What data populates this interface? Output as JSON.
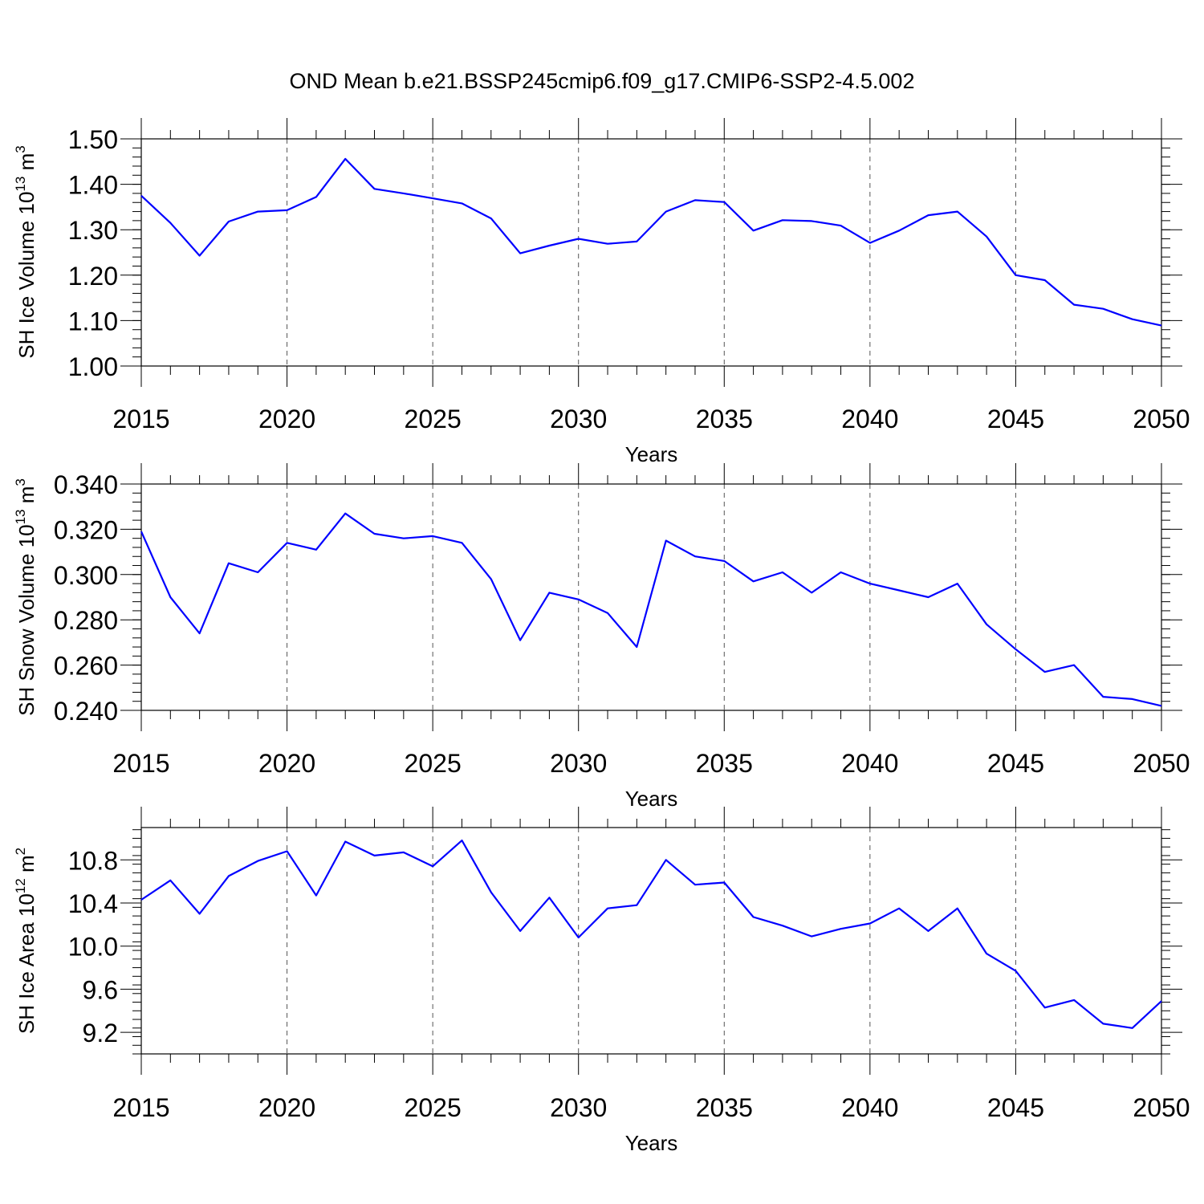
{
  "title": "OND Mean b.e21.BSSP245cmip6.f09_g17.CMIP6-SSP2-4.5.002",
  "colors": {
    "line": "#0000ff",
    "axis": "#000000",
    "grid": "#555555"
  },
  "chart_data": [
    {
      "type": "line",
      "ylabel_main": "SH Ice Volume 10",
      "ylabel_exp": "13",
      "ylabel_unit": "m",
      "ylabel_unit_exp": "3",
      "xlabel": "Years",
      "xlim": [
        2015,
        2050
      ],
      "ylim": [
        1.0,
        1.5
      ],
      "yticks": [
        1.0,
        1.1,
        1.2,
        1.3,
        1.4,
        1.5
      ],
      "ytick_labels": [
        "1.00",
        "1.10",
        "1.20",
        "1.30",
        "1.40",
        "1.50"
      ],
      "y_minor_step": 0.02,
      "xticks": [
        2015,
        2020,
        2025,
        2030,
        2035,
        2040,
        2045,
        2050
      ],
      "xtick_labels": [
        "2015",
        "2020",
        "2025",
        "2030",
        "2035",
        "2040",
        "2045",
        "2050"
      ],
      "grid": "vertical dashed at major x ticks",
      "x": [
        2015,
        2016,
        2017,
        2018,
        2019,
        2020,
        2021,
        2022,
        2023,
        2024,
        2025,
        2026,
        2027,
        2028,
        2029,
        2030,
        2031,
        2032,
        2033,
        2034,
        2035,
        2036,
        2037,
        2038,
        2039,
        2040,
        2041,
        2042,
        2043,
        2044,
        2045,
        2046,
        2047,
        2048,
        2049,
        2050
      ],
      "values": [
        1.375,
        1.315,
        1.243,
        1.318,
        1.34,
        1.343,
        1.372,
        1.456,
        1.39,
        1.38,
        1.369,
        1.358,
        1.325,
        1.248,
        1.265,
        1.28,
        1.269,
        1.274,
        1.34,
        1.365,
        1.361,
        1.298,
        1.321,
        1.319,
        1.309,
        1.271,
        1.298,
        1.332,
        1.34,
        1.285,
        1.2,
        1.189,
        1.135,
        1.126,
        1.103,
        1.089
      ]
    },
    {
      "type": "line",
      "ylabel_main": "SH Snow Volume 10",
      "ylabel_exp": "13",
      "ylabel_unit": "m",
      "ylabel_unit_exp": "3",
      "xlabel": "Years",
      "xlim": [
        2015,
        2050
      ],
      "ylim": [
        0.24,
        0.34
      ],
      "yticks": [
        0.24,
        0.26,
        0.28,
        0.3,
        0.32,
        0.34
      ],
      "ytick_labels": [
        "0.240",
        "0.260",
        "0.280",
        "0.300",
        "0.320",
        "0.340"
      ],
      "y_minor_step": 0.004,
      "xticks": [
        2015,
        2020,
        2025,
        2030,
        2035,
        2040,
        2045,
        2050
      ],
      "xtick_labels": [
        "2015",
        "2020",
        "2025",
        "2030",
        "2035",
        "2040",
        "2045",
        "2050"
      ],
      "grid": "vertical dashed at major x ticks",
      "x": [
        2015,
        2016,
        2017,
        2018,
        2019,
        2020,
        2021,
        2022,
        2023,
        2024,
        2025,
        2026,
        2027,
        2028,
        2029,
        2030,
        2031,
        2032,
        2033,
        2034,
        2035,
        2036,
        2037,
        2038,
        2039,
        2040,
        2041,
        2042,
        2043,
        2044,
        2045,
        2046,
        2047,
        2048,
        2049,
        2050
      ],
      "values": [
        0.319,
        0.29,
        0.274,
        0.305,
        0.301,
        0.314,
        0.311,
        0.327,
        0.318,
        0.316,
        0.317,
        0.314,
        0.298,
        0.271,
        0.292,
        0.289,
        0.283,
        0.268,
        0.315,
        0.308,
        0.306,
        0.297,
        0.301,
        0.292,
        0.301,
        0.296,
        0.293,
        0.29,
        0.296,
        0.278,
        0.267,
        0.257,
        0.26,
        0.246,
        0.245,
        0.242
      ]
    },
    {
      "type": "line",
      "ylabel_main": "SH Ice Area 10",
      "ylabel_exp": "12",
      "ylabel_unit": "m",
      "ylabel_unit_exp": "2",
      "xlabel": "Years",
      "xlim": [
        2015,
        2050
      ],
      "ylim": [
        9.0,
        11.1
      ],
      "yticks": [
        9.2,
        9.6,
        10.0,
        10.4,
        10.8
      ],
      "ytick_labels": [
        "9.2",
        "9.6",
        "10.0",
        "10.4",
        "10.8"
      ],
      "y_minor_step": 0.08,
      "xticks": [
        2015,
        2020,
        2025,
        2030,
        2035,
        2040,
        2045,
        2050
      ],
      "xtick_labels": [
        "2015",
        "2020",
        "2025",
        "2030",
        "2035",
        "2040",
        "2045",
        "2050"
      ],
      "grid": "vertical dashed at major x ticks",
      "x": [
        2015,
        2016,
        2017,
        2018,
        2019,
        2020,
        2021,
        2022,
        2023,
        2024,
        2025,
        2026,
        2027,
        2028,
        2029,
        2030,
        2031,
        2032,
        2033,
        2034,
        2035,
        2036,
        2037,
        2038,
        2039,
        2040,
        2041,
        2042,
        2043,
        2044,
        2045,
        2046,
        2047,
        2048,
        2049,
        2050
      ],
      "values": [
        10.43,
        10.61,
        10.3,
        10.65,
        10.79,
        10.88,
        10.47,
        10.97,
        10.84,
        10.87,
        10.74,
        10.98,
        10.5,
        10.14,
        10.45,
        10.08,
        10.35,
        10.38,
        10.8,
        10.57,
        10.59,
        10.27,
        10.19,
        10.09,
        10.16,
        10.21,
        10.35,
        10.14,
        10.35,
        9.93,
        9.77,
        9.43,
        9.5,
        9.28,
        9.24,
        9.49
      ]
    }
  ]
}
